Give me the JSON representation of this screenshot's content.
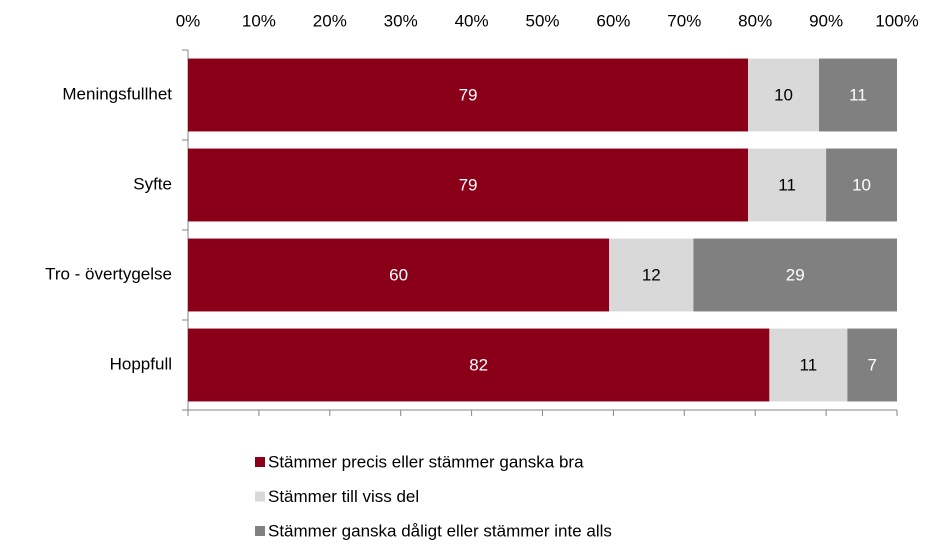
{
  "chart_data": {
    "type": "bar",
    "orientation": "horizontal",
    "stacking": "percent",
    "categories": [
      "Meningsfullhet",
      "Syfte",
      "Tro - övertygelse",
      "Hoppfull"
    ],
    "series": [
      {
        "name": "Stämmer precis eller stämmer ganska bra",
        "color": "#8b0019",
        "label_color": "#ffffff",
        "values": [
          79,
          79,
          60,
          82
        ]
      },
      {
        "name": "Stämmer till viss del",
        "color": "#d9d9d9",
        "label_color": "#000000",
        "values": [
          10,
          11,
          12,
          11
        ]
      },
      {
        "name": "Stämmer ganska dåligt eller stämmer inte alls",
        "color": "#808080",
        "label_color": "#ffffff",
        "values": [
          11,
          10,
          29,
          7
        ]
      }
    ],
    "xlim": [
      0,
      100
    ],
    "xticks": [
      {
        "value": 0,
        "label": "0%"
      },
      {
        "value": 10,
        "label": "10%"
      },
      {
        "value": 20,
        "label": "20%"
      },
      {
        "value": 30,
        "label": "30%"
      },
      {
        "value": 40,
        "label": "40%"
      },
      {
        "value": 50,
        "label": "50%"
      },
      {
        "value": 60,
        "label": "60%"
      },
      {
        "value": 70,
        "label": "70%"
      },
      {
        "value": 80,
        "label": "80%"
      },
      {
        "value": 90,
        "label": "90%"
      },
      {
        "value": 100,
        "label": "100%"
      }
    ],
    "legend": "bottom"
  }
}
